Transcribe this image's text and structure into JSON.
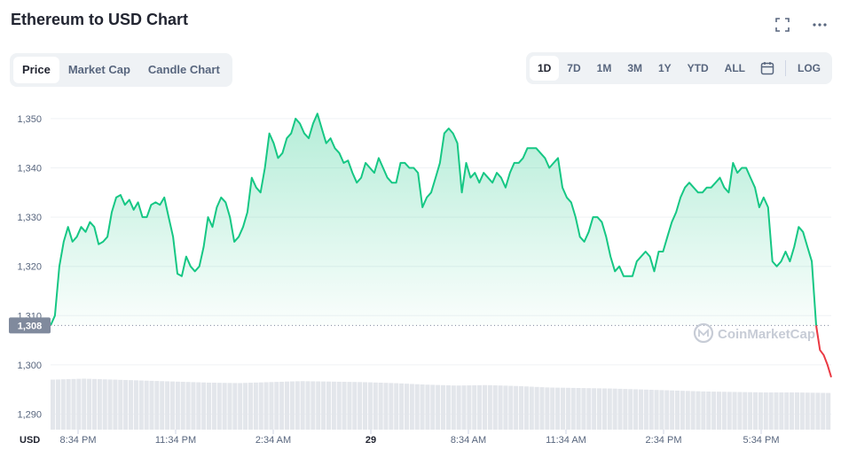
{
  "header": {
    "title": "Ethereum to USD Chart",
    "icons": [
      "fullscreen-icon",
      "more-icon"
    ]
  },
  "tabs": [
    {
      "label": "Price",
      "active": true
    },
    {
      "label": "Market Cap",
      "active": false
    },
    {
      "label": "Candle Chart",
      "active": false
    }
  ],
  "ranges": [
    {
      "label": "1D",
      "active": true
    },
    {
      "label": "7D",
      "active": false
    },
    {
      "label": "1M",
      "active": false
    },
    {
      "label": "3M",
      "active": false
    },
    {
      "label": "1Y",
      "active": false
    },
    {
      "label": "YTD",
      "active": false
    },
    {
      "label": "ALL",
      "active": false
    }
  ],
  "log_label": "LOG",
  "colors": {
    "up": "#16c784",
    "down": "#ea3943",
    "badge": "#808a9d",
    "volume": "#e3e6eb",
    "grid": "#eff2f5"
  },
  "chart_data": {
    "type": "area",
    "x_unit_label": "USD",
    "watermark": "CoinMarketCap",
    "current_price_label": "1,308",
    "current_price": 1308,
    "ylim": [
      1288,
      1353
    ],
    "yticks": [
      1290,
      1300,
      1310,
      1320,
      1330,
      1340,
      1350
    ],
    "ytick_labels": [
      "1,290",
      "1,300",
      "1,310",
      "1,320",
      "1,330",
      "1,340",
      "1,350"
    ],
    "xtick_labels": [
      "8:34 PM",
      "11:34 PM",
      "2:34 AM",
      "29",
      "8:34 AM",
      "11:34 AM",
      "2:34 PM",
      "5:34 PM"
    ],
    "xtick_bold": [
      false,
      false,
      false,
      true,
      false,
      false,
      false,
      false
    ],
    "grid": true,
    "price_series": [
      1308,
      1310,
      1320,
      1325,
      1328,
      1325,
      1326,
      1328,
      1327,
      1329,
      1328,
      1324.5,
      1325,
      1326,
      1331,
      1334,
      1334.5,
      1332.5,
      1333.5,
      1331.5,
      1333,
      1330,
      1330,
      1332.5,
      1333,
      1332.5,
      1334,
      1330,
      1326,
      1318.5,
      1318,
      1322,
      1320,
      1319,
      1320,
      1324,
      1330,
      1328,
      1332,
      1334,
      1333,
      1330,
      1325,
      1326,
      1328,
      1331,
      1338,
      1336,
      1335,
      1340,
      1347,
      1345,
      1342,
      1343,
      1346,
      1347,
      1350,
      1349,
      1347,
      1346,
      1349,
      1351,
      1348,
      1345,
      1346,
      1344,
      1343,
      1341,
      1341.5,
      1339,
      1337,
      1338,
      1341,
      1340,
      1339,
      1342,
      1340,
      1338,
      1337,
      1337,
      1341,
      1341,
      1340,
      1340,
      1339,
      1332,
      1334,
      1335,
      1338,
      1341,
      1347,
      1348,
      1347,
      1345,
      1335,
      1341,
      1338,
      1339,
      1337,
      1339,
      1338,
      1337,
      1339,
      1338,
      1336,
      1339,
      1341,
      1341,
      1342,
      1344,
      1344,
      1344,
      1343,
      1342,
      1340,
      1341,
      1342,
      1336,
      1334,
      1333,
      1330,
      1326,
      1325,
      1327,
      1330,
      1330,
      1329,
      1326,
      1322,
      1319,
      1320,
      1318,
      1318,
      1318,
      1321,
      1322,
      1323,
      1322,
      1319,
      1323,
      1323,
      1326,
      1329,
      1331,
      1334,
      1336,
      1337,
      1336,
      1335,
      1335,
      1336,
      1336,
      1337,
      1338,
      1336,
      1335,
      1341,
      1339,
      1340,
      1340,
      1338,
      1336,
      1332,
      1334,
      1332,
      1321,
      1320,
      1321,
      1323,
      1321,
      1324,
      1328,
      1327,
      1324,
      1321,
      1308
    ],
    "drop_series": [
      1308,
      1303,
      1302,
      1300,
      1297.5
    ],
    "volume_level_series": [
      1297,
      1297.2,
      1297,
      1296.8,
      1296.6,
      1296.4,
      1296.3,
      1296.5,
      1296.7,
      1296.6,
      1296.5,
      1296.3,
      1296,
      1295.8,
      1295.9,
      1295.7,
      1295.4,
      1295.3,
      1295.2,
      1295,
      1294.8,
      1294.6,
      1294.5,
      1294.4,
      1294.4,
      1294.3
    ]
  }
}
